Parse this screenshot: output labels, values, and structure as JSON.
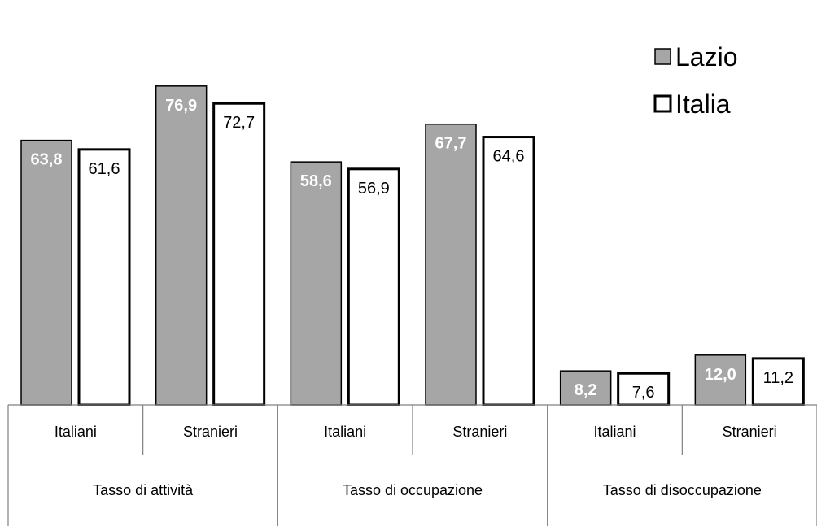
{
  "chart_data": {
    "type": "bar",
    "groups": [
      {
        "label": "Tasso di attività",
        "categories": [
          "Italiani",
          "Stranieri"
        ]
      },
      {
        "label": "Tasso di occupazione",
        "categories": [
          "Italiani",
          "Stranieri"
        ]
      },
      {
        "label": "Tasso di disoccupazione",
        "categories": [
          "Italiani",
          "Stranieri"
        ]
      }
    ],
    "series": [
      {
        "name": "Lazio",
        "color": "#a6a6a6",
        "values": [
          63.8,
          76.9,
          58.6,
          67.7,
          8.2,
          12.0
        ],
        "labels": [
          "63,8",
          "76,9",
          "58,6",
          "67,7",
          "8,2",
          "12,0"
        ]
      },
      {
        "name": "Italia",
        "color": "#ffffff",
        "values": [
          61.6,
          72.7,
          56.9,
          64.6,
          7.6,
          11.2
        ],
        "labels": [
          "61,6",
          "72,7",
          "56,9",
          "64,6",
          "7,6",
          "11,2"
        ]
      }
    ],
    "ylim": [
      0,
      80
    ],
    "legend_position": "top-right",
    "grid": false
  }
}
